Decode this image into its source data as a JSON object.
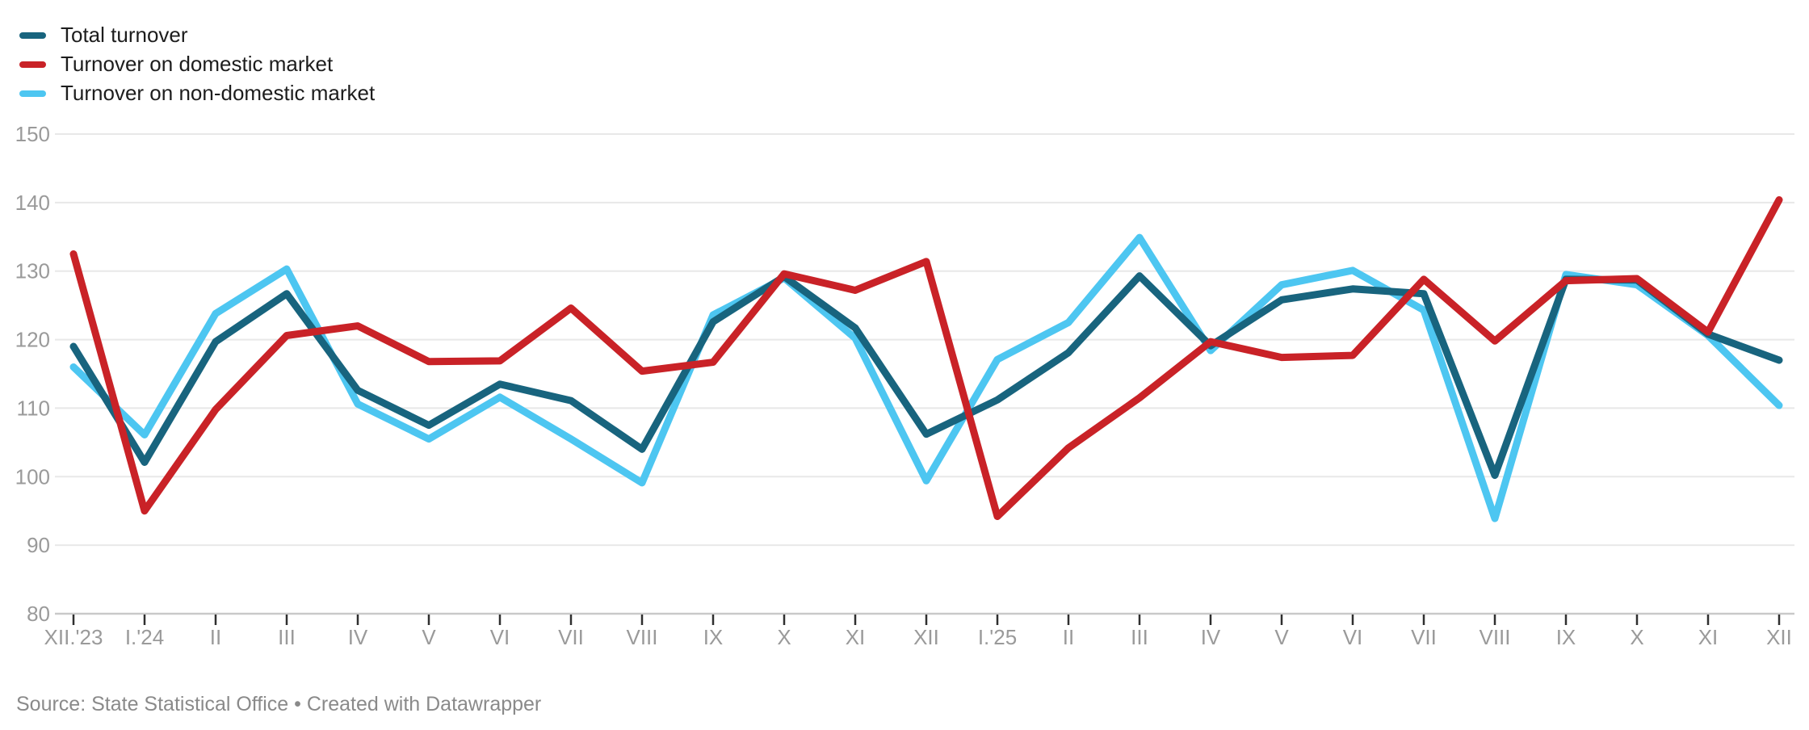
{
  "footer": {
    "source_line": "Source: State Statistical Office • Created with Datawrapper"
  },
  "chart_data": {
    "type": "line",
    "title": "",
    "x_labels": [
      "XII.'23",
      "I.'24",
      "II",
      "III",
      "IV",
      "V",
      "VI",
      "VII",
      "VIII",
      "IX",
      "X",
      "XI",
      "XII",
      "I.'25",
      "II",
      "III",
      "IV",
      "V",
      "VI",
      "VII",
      "VIII",
      "IX",
      "X",
      "XI",
      "XII"
    ],
    "series": [
      {
        "id": "total",
        "name": "Total turnover",
        "color": "#18647e",
        "z": 2,
        "values": [
          119.0,
          102.1,
          119.7,
          126.7,
          112.6,
          107.5,
          113.5,
          111.1,
          104.0,
          122.6,
          129.2,
          121.7,
          106.2,
          111.2,
          118.1,
          129.3,
          119.1,
          125.8,
          127.4,
          126.7,
          100.2,
          128.8,
          128.7,
          120.8,
          117.0
        ]
      },
      {
        "id": "domestic",
        "name": "Turnover on domestic market",
        "color": "#c92227",
        "z": 3,
        "values": [
          132.5,
          95.0,
          109.8,
          120.6,
          122.0,
          116.8,
          116.9,
          124.6,
          115.4,
          116.7,
          129.6,
          127.2,
          131.4,
          94.2,
          104.2,
          111.5,
          119.7,
          117.4,
          117.7,
          128.8,
          119.8,
          128.6,
          128.9,
          121.1,
          140.4
        ]
      },
      {
        "id": "non-domestic",
        "name": "Turnover on non-domestic market",
        "color": "#4dc6f1",
        "z": 1,
        "values": [
          116.0,
          106.1,
          123.8,
          130.3,
          110.6,
          105.5,
          111.6,
          105.5,
          99.1,
          123.6,
          129.0,
          120.2,
          99.4,
          117.1,
          122.5,
          134.9,
          118.4,
          128.0,
          130.1,
          124.3,
          93.9,
          129.5,
          128.0,
          120.6,
          110.4
        ]
      }
    ],
    "ylim": [
      80,
      150
    ],
    "yticks": [
      80,
      90,
      100,
      110,
      120,
      130,
      140,
      150
    ],
    "grid": "horizontal",
    "legend_position": "top-left",
    "style": {
      "grid_color": "#e8e8e8",
      "baseline_color": "#c9c9c9",
      "tick_color": "#2f2f2f",
      "axis_label_color": "#9a9a9a",
      "legend_text_color": "#1d1d1d",
      "source_text_color": "#8a8a8a",
      "line_width": 9
    }
  }
}
